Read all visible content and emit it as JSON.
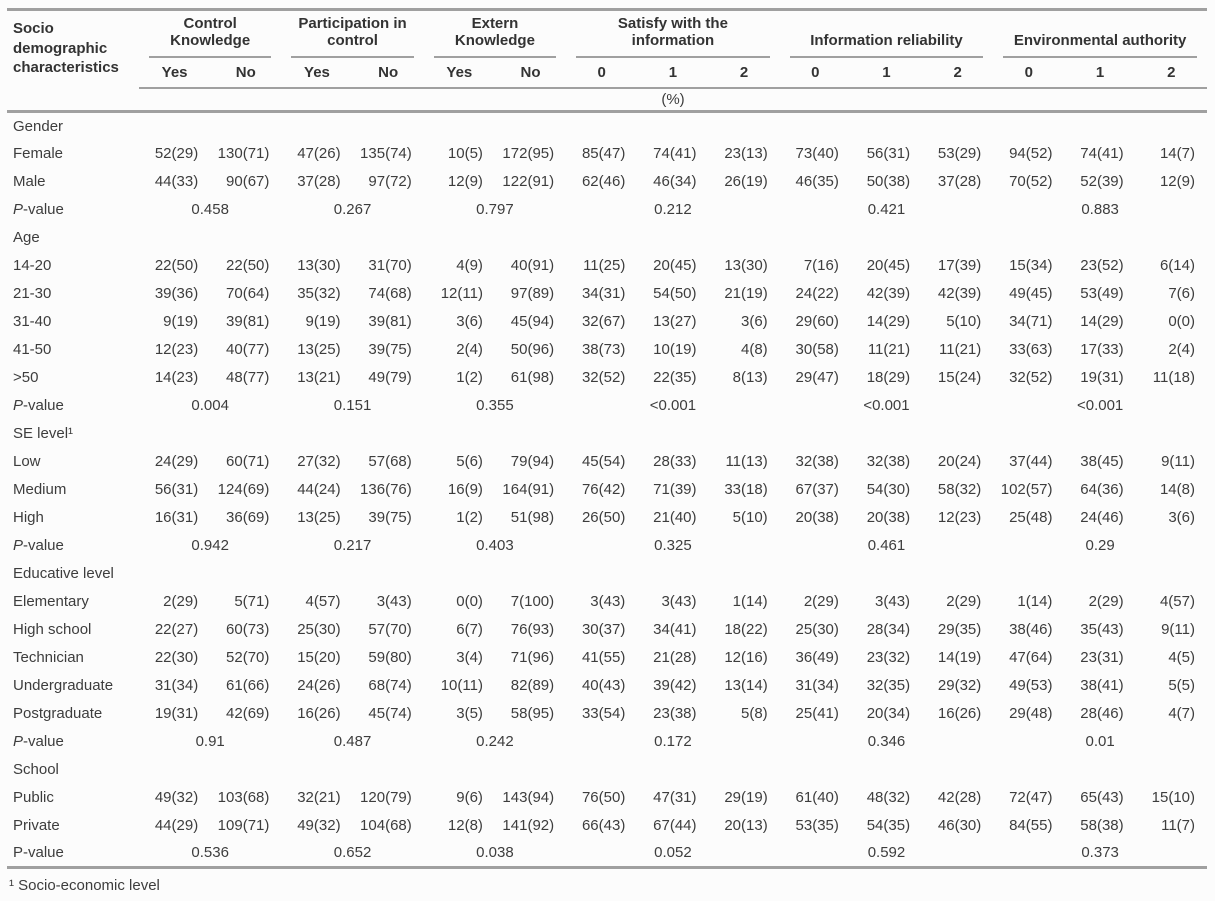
{
  "page": {
    "background": "#fcfcfc",
    "text_color": "#3d3d3d",
    "rule_color": "#a0a0a0"
  },
  "table": {
    "row_header_title": "Socio demographic characteristics",
    "unit_label": "(%)",
    "footnote": "¹ Socio-economic level",
    "column_groups": [
      {
        "label": "Control Knowledge",
        "subcolumns": [
          "Yes",
          "No"
        ]
      },
      {
        "label": "Participation in control",
        "subcolumns": [
          "Yes",
          "No"
        ]
      },
      {
        "label": "Extern Knowledge",
        "subcolumns": [
          "Yes",
          "No"
        ]
      },
      {
        "label": "Satisfy with the information",
        "subcolumns": [
          "0",
          "1",
          "2"
        ]
      },
      {
        "label": "Information reliability",
        "subcolumns": [
          "0",
          "1",
          "2"
        ]
      },
      {
        "label": "Environmental authority",
        "subcolumns": [
          "0",
          "1",
          "2"
        ]
      }
    ],
    "sections": [
      {
        "title": "Gender",
        "rows": [
          {
            "label": "Female",
            "values": [
              "52(29)",
              "130(71)",
              "47(26)",
              "135(74)",
              "10(5)",
              "172(95)",
              "85(47)",
              "74(41)",
              "23(13)",
              "73(40)",
              "56(31)",
              "53(29)",
              "94(52)",
              "74(41)",
              "14(7)"
            ]
          },
          {
            "label": "Male",
            "values": [
              "44(33)",
              "90(67)",
              "37(28)",
              "97(72)",
              "12(9)",
              "122(91)",
              "62(46)",
              "46(34)",
              "26(19)",
              "46(35)",
              "50(38)",
              "37(28)",
              "70(52)",
              "52(39)",
              "12(9)"
            ]
          }
        ],
        "p_row": {
          "label": "P-value",
          "italic_p": true,
          "values": [
            "0.458",
            "0.267",
            "0.797",
            "0.212",
            "0.421",
            "0.883"
          ]
        }
      },
      {
        "title": "Age",
        "rows": [
          {
            "label": "14-20",
            "values": [
              "22(50)",
              "22(50)",
              "13(30)",
              "31(70)",
              "4(9)",
              "40(91)",
              "11(25)",
              "20(45)",
              "13(30)",
              "7(16)",
              "20(45)",
              "17(39)",
              "15(34)",
              "23(52)",
              "6(14)"
            ]
          },
          {
            "label": "21-30",
            "values": [
              "39(36)",
              "70(64)",
              "35(32)",
              "74(68)",
              "12(11)",
              "97(89)",
              "34(31)",
              "54(50)",
              "21(19)",
              "24(22)",
              "42(39)",
              "42(39)",
              "49(45)",
              "53(49)",
              "7(6)"
            ]
          },
          {
            "label": "31-40",
            "values": [
              "9(19)",
              "39(81)",
              "9(19)",
              "39(81)",
              "3(6)",
              "45(94)",
              "32(67)",
              "13(27)",
              "3(6)",
              "29(60)",
              "14(29)",
              "5(10)",
              "34(71)",
              "14(29)",
              "0(0)"
            ]
          },
          {
            "label": "41-50",
            "values": [
              "12(23)",
              "40(77)",
              "13(25)",
              "39(75)",
              "2(4)",
              "50(96)",
              "38(73)",
              "10(19)",
              "4(8)",
              "30(58)",
              "11(21)",
              "11(21)",
              "33(63)",
              "17(33)",
              "2(4)"
            ]
          },
          {
            "label": ">50",
            "values": [
              "14(23)",
              "48(77)",
              "13(21)",
              "49(79)",
              "1(2)",
              "61(98)",
              "32(52)",
              "22(35)",
              "8(13)",
              "29(47)",
              "18(29)",
              "15(24)",
              "32(52)",
              "19(31)",
              "11(18)"
            ]
          }
        ],
        "p_row": {
          "label": "P-value",
          "italic_p": true,
          "values": [
            "0.004",
            "0.151",
            "0.355",
            "<0.001",
            "<0.001",
            "<0.001"
          ]
        }
      },
      {
        "title": "SE level¹",
        "rows": [
          {
            "label": "Low",
            "values": [
              "24(29)",
              "60(71)",
              "27(32)",
              "57(68)",
              "5(6)",
              "79(94)",
              "45(54)",
              "28(33)",
              "11(13)",
              "32(38)",
              "32(38)",
              "20(24)",
              "37(44)",
              "38(45)",
              "9(11)"
            ]
          },
          {
            "label": "Medium",
            "values": [
              "56(31)",
              "124(69)",
              "44(24)",
              "136(76)",
              "16(9)",
              "164(91)",
              "76(42)",
              "71(39)",
              "33(18)",
              "67(37)",
              "54(30)",
              "58(32)",
              "102(57)",
              "64(36)",
              "14(8)"
            ]
          },
          {
            "label": "High",
            "values": [
              "16(31)",
              "36(69)",
              "13(25)",
              "39(75)",
              "1(2)",
              "51(98)",
              "26(50)",
              "21(40)",
              "5(10)",
              "20(38)",
              "20(38)",
              "12(23)",
              "25(48)",
              "24(46)",
              "3(6)"
            ]
          }
        ],
        "p_row": {
          "label": "P-value",
          "italic_p": true,
          "values": [
            "0.942",
            "0.217",
            "0.403",
            "0.325",
            "0.461",
            "0.29"
          ]
        }
      },
      {
        "title": "Educative level",
        "rows": [
          {
            "label": "Elementary",
            "values": [
              "2(29)",
              "5(71)",
              "4(57)",
              "3(43)",
              "0(0)",
              "7(100)",
              "3(43)",
              "3(43)",
              "1(14)",
              "2(29)",
              "3(43)",
              "2(29)",
              "1(14)",
              "2(29)",
              "4(57)"
            ]
          },
          {
            "label": "High school",
            "values": [
              "22(27)",
              "60(73)",
              "25(30)",
              "57(70)",
              "6(7)",
              "76(93)",
              "30(37)",
              "34(41)",
              "18(22)",
              "25(30)",
              "28(34)",
              "29(35)",
              "38(46)",
              "35(43)",
              "9(11)"
            ]
          },
          {
            "label": "Technician",
            "values": [
              "22(30)",
              "52(70)",
              "15(20)",
              "59(80)",
              "3(4)",
              "71(96)",
              "41(55)",
              "21(28)",
              "12(16)",
              "36(49)",
              "23(32)",
              "14(19)",
              "47(64)",
              "23(31)",
              "4(5)"
            ]
          },
          {
            "label": "Undergraduate",
            "values": [
              "31(34)",
              "61(66)",
              "24(26)",
              "68(74)",
              "10(11)",
              "82(89)",
              "40(43)",
              "39(42)",
              "13(14)",
              "31(34)",
              "32(35)",
              "29(32)",
              "49(53)",
              "38(41)",
              "5(5)"
            ]
          },
          {
            "label": "Postgraduate",
            "values": [
              "19(31)",
              "42(69)",
              "16(26)",
              "45(74)",
              "3(5)",
              "58(95)",
              "33(54)",
              "23(38)",
              "5(8)",
              "25(41)",
              "20(34)",
              "16(26)",
              "29(48)",
              "28(46)",
              "4(7)"
            ]
          }
        ],
        "p_row": {
          "label": "P-value",
          "italic_p": true,
          "values": [
            "0.91",
            "0.487",
            "0.242",
            "0.172",
            "0.346",
            "0.01"
          ]
        }
      },
      {
        "title": "School",
        "rows": [
          {
            "label": "Public",
            "values": [
              "49(32)",
              "103(68)",
              "32(21)",
              "120(79)",
              "9(6)",
              "143(94)",
              "76(50)",
              "47(31)",
              "29(19)",
              "61(40)",
              "48(32)",
              "42(28)",
              "72(47)",
              "65(43)",
              "15(10)"
            ]
          },
          {
            "label": "Private",
            "values": [
              "44(29)",
              "109(71)",
              "49(32)",
              "104(68)",
              "12(8)",
              "141(92)",
              "66(43)",
              "67(44)",
              "20(13)",
              "53(35)",
              "54(35)",
              "46(30)",
              "84(55)",
              "58(38)",
              "11(7)"
            ]
          }
        ],
        "p_row": {
          "label": "P-value",
          "italic_p": false,
          "values": [
            "0.536",
            "0.652",
            "0.038",
            "0.052",
            "0.592",
            "0.373"
          ]
        }
      }
    ]
  }
}
